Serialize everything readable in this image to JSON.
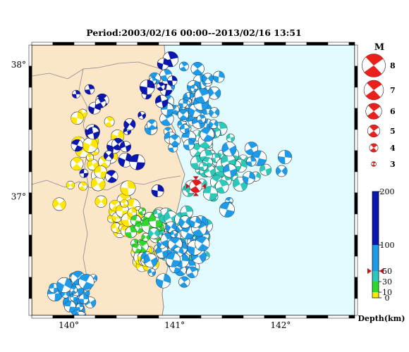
{
  "title": "Period:2003/02/16 00:00--2013/02/16 13:51",
  "map": {
    "lon_range": [
      139.65,
      142.7
    ],
    "lat_range": [
      36.1,
      38.15
    ],
    "lon_ticks": [
      {
        "value": 140,
        "label": "140°"
      },
      {
        "value": 141,
        "label": "141°"
      },
      {
        "value": 142,
        "label": "142°"
      }
    ],
    "lat_ticks": [
      {
        "value": 38,
        "label": "38°"
      },
      {
        "value": 37,
        "label": "37°"
      }
    ],
    "land_color": "#fbe6c8",
    "sea_color": "#e1fbff",
    "border_color": "#888888",
    "featured_event": {
      "lon": 141.2,
      "lat": 37.08,
      "color": "#e11b1b",
      "marker_color": "#c0151a"
    }
  },
  "magnitude_legend": {
    "title": "M",
    "items": [
      {
        "label": "8",
        "value": 8
      },
      {
        "label": "7",
        "value": 7
      },
      {
        "label": "6",
        "value": 6
      },
      {
        "label": "5",
        "value": 5
      },
      {
        "label": "4",
        "value": 4
      },
      {
        "label": "3",
        "value": 3
      }
    ],
    "color": "#e8211d"
  },
  "depth_scale": {
    "title": "Depth(km)",
    "ticks": [
      {
        "value": 200,
        "label": "200"
      },
      {
        "value": 100,
        "label": "100"
      },
      {
        "value": 50,
        "label": "50"
      },
      {
        "value": 30,
        "label": "30"
      },
      {
        "value": 10,
        "label": "10"
      },
      {
        "value": 0,
        "label": "0"
      }
    ],
    "bands": [
      {
        "from": 0,
        "to": 10,
        "color": "#ffe800"
      },
      {
        "from": 10,
        "to": 30,
        "color": "#2ed82e"
      },
      {
        "from": 30,
        "to": 50,
        "color": "#2cc9b8"
      },
      {
        "from": 50,
        "to": 100,
        "color": "#1e9be8"
      },
      {
        "from": 100,
        "to": 200,
        "color": "#0a16b0"
      }
    ],
    "marker_depth": 50
  }
}
